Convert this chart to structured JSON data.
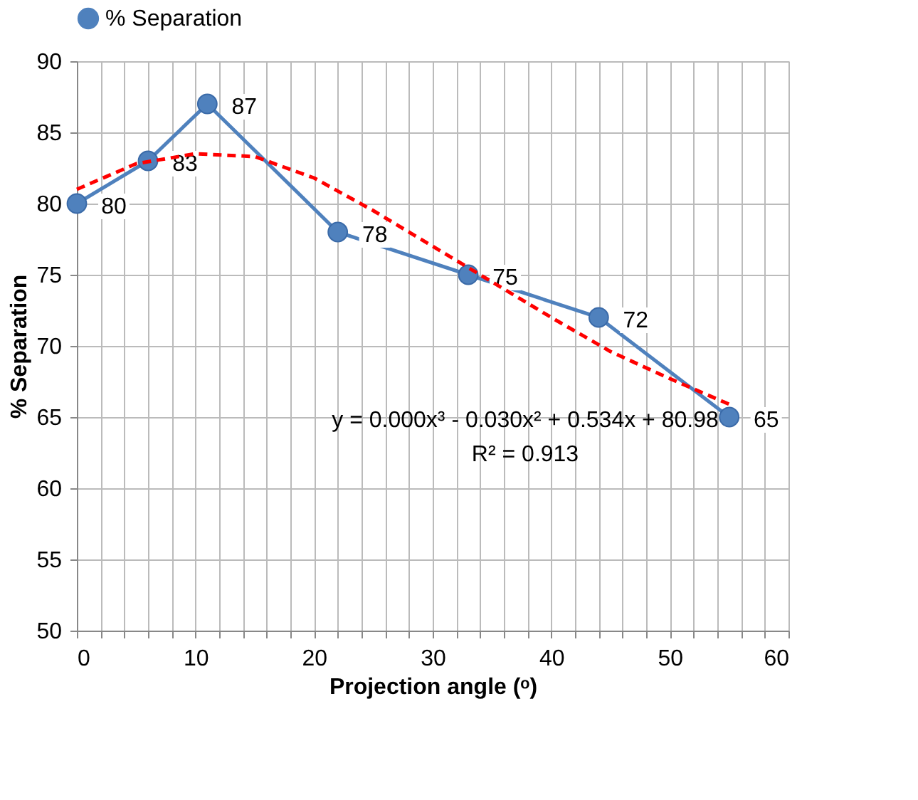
{
  "chart_data": {
    "type": "line",
    "xlabel": "Projection angle (ᵒ)",
    "ylabel": "% Separation",
    "xlim": [
      0,
      60
    ],
    "ylim": [
      50,
      90
    ],
    "xticks": [
      0,
      {
        "value": 2,
        "label": null
      },
      {
        "value": 4,
        "label": null
      },
      {
        "value": 6,
        "label": null
      },
      {
        "value": 8,
        "label": null
      },
      10,
      {
        "value": 12,
        "label": null
      },
      {
        "value": 14,
        "label": null
      },
      {
        "value": 16,
        "label": null
      },
      {
        "value": 18,
        "label": null
      },
      20,
      {
        "value": 22,
        "label": null
      },
      {
        "value": 24,
        "label": null
      },
      {
        "value": 26,
        "label": null
      },
      {
        "value": 28,
        "label": null
      },
      30,
      {
        "value": 32,
        "label": null
      },
      {
        "value": 34,
        "label": null
      },
      {
        "value": 36,
        "label": null
      },
      {
        "value": 38,
        "label": null
      },
      40,
      {
        "value": 42,
        "label": null
      },
      {
        "value": 44,
        "label": null
      },
      {
        "value": 46,
        "label": null
      },
      {
        "value": 48,
        "label": null
      },
      50,
      {
        "value": 52,
        "label": null
      },
      {
        "value": 54,
        "label": null
      },
      {
        "value": 56,
        "label": null
      },
      {
        "value": 58,
        "label": null
      },
      60
    ],
    "yticks": [
      50,
      55,
      60,
      65,
      70,
      75,
      80,
      85,
      90
    ],
    "grid": true,
    "legend": "top",
    "series": [
      {
        "name": "% Separation",
        "color": "#4f81bd",
        "x": [
          0,
          6,
          11,
          22,
          33,
          44,
          55
        ],
        "values": [
          80,
          83,
          87,
          78,
          75,
          72,
          65
        ],
        "marker": "circle",
        "line_style": "solid",
        "data_labels": true
      },
      {
        "type": "line",
        "color": "#ff0000",
        "x": [
          0,
          5,
          10,
          15,
          20,
          25,
          30,
          35,
          40,
          45,
          50,
          55
        ],
        "values": [
          81,
          82.8,
          83.5,
          83.3,
          81.8,
          79.5,
          77,
          74.5,
          72,
          69.6,
          67.7,
          65.9
        ],
        "marker": "none",
        "line_style": "dashed"
      }
    ],
    "annotations": [
      "y = 0.000x³ - 0.030x² + 0.534x + 80.98",
      "R² = 0.913"
    ]
  }
}
